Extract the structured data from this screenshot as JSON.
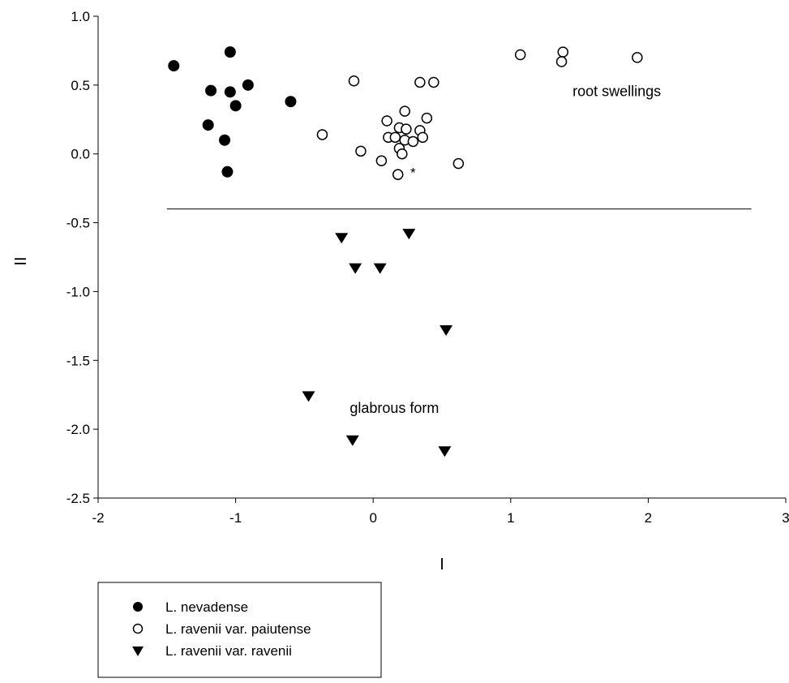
{
  "chart_data": {
    "type": "scatter",
    "title": "",
    "xlabel": "I",
    "ylabel": "II",
    "xlim": [
      -2,
      3
    ],
    "ylim": [
      -2.5,
      1.0
    ],
    "xticks": [
      -2,
      -1,
      0,
      1,
      2,
      3
    ],
    "xtick_labels": [
      "-2",
      "-1",
      "0",
      "1",
      "2",
      "3"
    ],
    "yticks": [
      1.0,
      0.5,
      0.0,
      -0.5,
      -1.0,
      -1.5,
      -2.0,
      -2.5
    ],
    "ytick_labels": [
      "1.0",
      "0.5",
      "0.0",
      "-0.5",
      "-1.0",
      "-1.5",
      "-2.0",
      "-2.5"
    ],
    "grid": false,
    "legend_position": "below-left",
    "divider_line": {
      "x": [
        -1.5,
        2.75
      ],
      "y": -0.4
    },
    "annotations": [
      {
        "text": "root swellings",
        "x": 1.45,
        "y": 0.42
      },
      {
        "text": "glabrous form",
        "x": -0.17,
        "y": -1.88
      },
      {
        "text": "*",
        "x": 0.27,
        "y": -0.17
      }
    ],
    "series": [
      {
        "name": "L. nevadense",
        "marker": "filled-circle",
        "points": [
          [
            -1.45,
            0.64
          ],
          [
            -1.04,
            0.74
          ],
          [
            -1.18,
            0.46
          ],
          [
            -1.04,
            0.45
          ],
          [
            -0.91,
            0.5
          ],
          [
            -1.0,
            0.35
          ],
          [
            -0.6,
            0.38
          ],
          [
            -1.2,
            0.21
          ],
          [
            -1.08,
            0.1
          ],
          [
            -1.06,
            -0.13
          ]
        ]
      },
      {
        "name": "L. ravenii var. paiutense",
        "marker": "open-circle",
        "points": [
          [
            -0.14,
            0.53
          ],
          [
            0.34,
            0.52
          ],
          [
            0.44,
            0.52
          ],
          [
            -0.37,
            0.14
          ],
          [
            -0.09,
            0.02
          ],
          [
            0.06,
            -0.05
          ],
          [
            0.23,
            0.31
          ],
          [
            0.1,
            0.24
          ],
          [
            0.39,
            0.26
          ],
          [
            0.19,
            0.19
          ],
          [
            0.24,
            0.18
          ],
          [
            0.34,
            0.17
          ],
          [
            0.11,
            0.12
          ],
          [
            0.16,
            0.12
          ],
          [
            0.36,
            0.12
          ],
          [
            0.23,
            0.1
          ],
          [
            0.29,
            0.09
          ],
          [
            0.19,
            0.04
          ],
          [
            0.21,
            0.0
          ],
          [
            0.62,
            -0.07
          ],
          [
            0.18,
            -0.15
          ],
          [
            1.07,
            0.72
          ],
          [
            1.38,
            0.74
          ],
          [
            1.37,
            0.67
          ],
          [
            1.92,
            0.7
          ]
        ]
      },
      {
        "name": "L. ravenii var. ravenii",
        "marker": "filled-down-triangle",
        "points": [
          [
            -0.23,
            -0.61
          ],
          [
            0.26,
            -0.58
          ],
          [
            -0.13,
            -0.83
          ],
          [
            0.05,
            -0.83
          ],
          [
            0.53,
            -1.28
          ],
          [
            -0.47,
            -1.76
          ],
          [
            -0.15,
            -2.08
          ],
          [
            0.52,
            -2.16
          ]
        ]
      }
    ]
  }
}
